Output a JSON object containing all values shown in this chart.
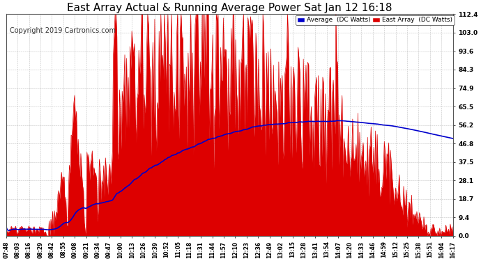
{
  "title": "East Array Actual & Running Average Power Sat Jan 12 16:18",
  "copyright": "Copyright 2019 Cartronics.com",
  "y_ticks": [
    0.0,
    9.4,
    18.7,
    28.1,
    37.5,
    46.8,
    56.2,
    65.5,
    74.9,
    84.3,
    93.6,
    103.0,
    112.4
  ],
  "ylim": [
    0,
    112.4
  ],
  "x_labels": [
    "07:48",
    "08:03",
    "08:16",
    "08:29",
    "08:42",
    "08:55",
    "09:08",
    "09:21",
    "09:34",
    "09:47",
    "10:00",
    "10:13",
    "10:26",
    "10:39",
    "10:52",
    "11:05",
    "11:18",
    "11:31",
    "11:44",
    "11:57",
    "12:10",
    "12:23",
    "12:36",
    "12:49",
    "13:02",
    "13:15",
    "13:28",
    "13:41",
    "13:54",
    "14:07",
    "14:20",
    "14:33",
    "14:46",
    "14:59",
    "15:12",
    "15:25",
    "15:38",
    "15:51",
    "16:04",
    "16:17"
  ],
  "bar_color": "#dd0000",
  "avg_color": "#0000cc",
  "legend_avg_label": "Average  (DC Watts)",
  "legend_east_label": "East Array  (DC Watts)",
  "background_color": "#ffffff",
  "grid_color": "#999999",
  "title_fontsize": 11,
  "copyright_fontsize": 7
}
